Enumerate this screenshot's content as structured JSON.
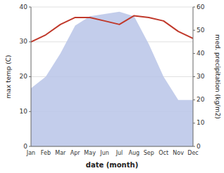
{
  "chart_data": {
    "type": "line",
    "categories": [
      "Jan",
      "Feb",
      "Mar",
      "Apr",
      "May",
      "Jun",
      "Jul",
      "Aug",
      "Sep",
      "Oct",
      "Nov",
      "Dec"
    ],
    "series": [
      {
        "type": "area",
        "axis": "y2",
        "color": "#b8c4e8",
        "values": [
          25,
          30,
          40,
          52,
          56,
          57,
          58,
          56,
          44,
          30,
          20,
          20
        ]
      },
      {
        "type": "line",
        "color": "#c0392b",
        "values": [
          30,
          32,
          35,
          37,
          37,
          36,
          35,
          37.5,
          37,
          36,
          33,
          31
        ]
      }
    ],
    "xlabel": "date (month)",
    "ylabel": "max temp (C)",
    "y2label": "med. precipitation (kg/m2)",
    "ylim": [
      0,
      40
    ],
    "yticks": [
      0,
      10,
      20,
      30,
      40
    ],
    "y2lim": [
      0,
      60
    ],
    "y2ticks": [
      0,
      10,
      20,
      30,
      40,
      50,
      60
    ],
    "grid": true
  }
}
